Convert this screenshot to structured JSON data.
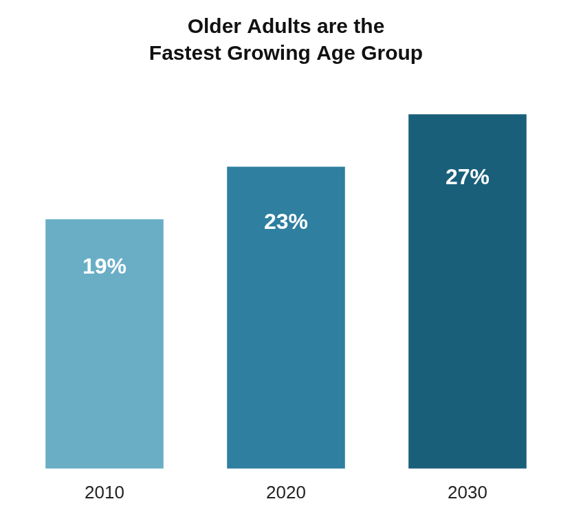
{
  "chart_data": {
    "type": "bar",
    "title": "Older Adults are the\nFastest Growing Age Group",
    "categories": [
      "2010",
      "2020",
      "2030"
    ],
    "values": [
      19,
      23,
      27
    ],
    "value_labels": [
      "19%",
      "23%",
      "27%"
    ],
    "colors": [
      "#6aaec6",
      "#2e7fa0",
      "#1a5f7a"
    ],
    "ylim": [
      0,
      29
    ],
    "grid": false,
    "data_labels": true,
    "tick_labels": "x"
  }
}
